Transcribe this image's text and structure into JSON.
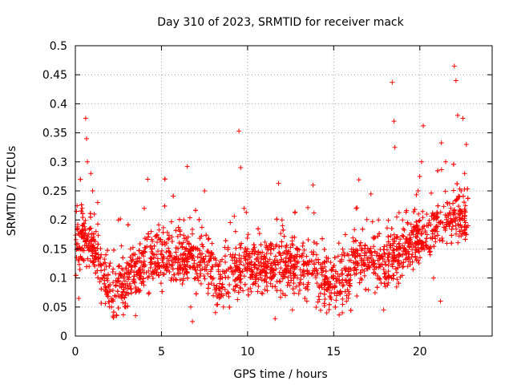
{
  "chart_data": {
    "type": "scatter",
    "title": "Day 310 of 2023, SRMTID for receiver mack",
    "xlabel": "GPS time / hours",
    "ylabel": "SRMTID / TECUs",
    "xlim": [
      0,
      24.2
    ],
    "ylim": [
      0,
      0.5
    ],
    "x_ticks": [
      0,
      5,
      10,
      15,
      20
    ],
    "y_ticks": [
      0,
      0.05,
      0.1,
      0.15,
      0.2,
      0.25,
      0.3,
      0.35,
      0.4,
      0.45,
      0.5
    ],
    "x_tick_labels": [
      "0",
      "5",
      "10",
      "15",
      "20"
    ],
    "y_tick_labels": [
      "0",
      "0.05",
      "0.1",
      "0.15",
      "0.2",
      "0.25",
      "0.3",
      "0.35",
      "0.4",
      "0.45",
      "0.5"
    ],
    "grid": true,
    "marker": "plus",
    "color": "#ff0000",
    "x_range_hours": [
      0,
      22.8
    ],
    "points": [
      [
        0.2,
        0.065
      ],
      [
        0.3,
        0.15
      ],
      [
        0.4,
        0.22
      ],
      [
        0.5,
        0.13
      ],
      [
        0.6,
        0.375
      ],
      [
        0.65,
        0.34
      ],
      [
        0.7,
        0.3
      ],
      [
        0.8,
        0.12
      ],
      [
        0.9,
        0.28
      ],
      [
        1.0,
        0.25
      ],
      [
        1.1,
        0.21
      ],
      [
        1.2,
        0.18
      ],
      [
        1.3,
        0.23
      ],
      [
        1.5,
        0.14
      ],
      [
        1.6,
        0.1
      ],
      [
        1.8,
        0.12
      ],
      [
        2.0,
        0.08
      ],
      [
        2.2,
        0.06
      ],
      [
        2.4,
        0.035
      ],
      [
        2.5,
        0.2
      ],
      [
        2.8,
        0.1
      ],
      [
        3.0,
        0.09
      ],
      [
        3.2,
        0.15
      ],
      [
        3.5,
        0.035
      ],
      [
        3.8,
        0.11
      ],
      [
        4.0,
        0.22
      ],
      [
        4.2,
        0.27
      ],
      [
        4.4,
        0.18
      ],
      [
        4.7,
        0.14
      ],
      [
        5.0,
        0.12
      ],
      [
        5.3,
        0.16
      ],
      [
        5.6,
        0.1
      ],
      [
        6.0,
        0.13
      ],
      [
        6.3,
        0.2
      ],
      [
        6.5,
        0.292
      ],
      [
        6.7,
        0.05
      ],
      [
        6.8,
        0.025
      ],
      [
        7.0,
        0.15
      ],
      [
        7.3,
        0.09
      ],
      [
        7.5,
        0.25
      ],
      [
        7.8,
        0.13
      ],
      [
        8.0,
        0.1
      ],
      [
        8.3,
        0.12
      ],
      [
        8.6,
        0.05
      ],
      [
        9.0,
        0.14
      ],
      [
        9.3,
        0.18
      ],
      [
        9.5,
        0.353
      ],
      [
        9.6,
        0.29
      ],
      [
        9.8,
        0.22
      ],
      [
        10.0,
        0.15
      ],
      [
        10.3,
        0.11
      ],
      [
        10.6,
        0.14
      ],
      [
        11.0,
        0.08
      ],
      [
        11.3,
        0.1
      ],
      [
        11.6,
        0.03
      ],
      [
        11.8,
        0.263
      ],
      [
        12.0,
        0.2
      ],
      [
        12.3,
        0.12
      ],
      [
        12.6,
        0.045
      ],
      [
        12.9,
        0.15
      ],
      [
        13.2,
        0.11
      ],
      [
        13.5,
        0.08
      ],
      [
        13.8,
        0.26
      ],
      [
        14.0,
        0.14
      ],
      [
        14.3,
        0.11
      ],
      [
        14.6,
        0.04
      ],
      [
        14.8,
        0.09
      ],
      [
        15.0,
        0.1
      ],
      [
        15.3,
        0.16
      ],
      [
        15.5,
        0.04
      ],
      [
        15.8,
        0.08
      ],
      [
        16.0,
        0.13
      ],
      [
        16.3,
        0.22
      ],
      [
        16.6,
        0.15
      ],
      [
        17.0,
        0.12
      ],
      [
        17.3,
        0.17
      ],
      [
        17.6,
        0.2
      ],
      [
        17.9,
        0.045
      ],
      [
        18.2,
        0.1
      ],
      [
        18.4,
        0.437
      ],
      [
        18.5,
        0.37
      ],
      [
        18.55,
        0.325
      ],
      [
        18.8,
        0.15
      ],
      [
        19.0,
        0.2
      ],
      [
        19.3,
        0.12
      ],
      [
        19.6,
        0.18
      ],
      [
        19.9,
        0.25
      ],
      [
        20.1,
        0.3
      ],
      [
        20.2,
        0.362
      ],
      [
        20.4,
        0.21
      ],
      [
        20.6,
        0.14
      ],
      [
        20.8,
        0.1
      ],
      [
        21.0,
        0.18
      ],
      [
        21.2,
        0.06
      ],
      [
        21.5,
        0.3
      ],
      [
        21.8,
        0.22
      ],
      [
        22.0,
        0.465
      ],
      [
        22.1,
        0.44
      ],
      [
        22.2,
        0.38
      ],
      [
        22.3,
        0.2
      ],
      [
        22.4,
        0.25
      ],
      [
        22.5,
        0.375
      ],
      [
        22.6,
        0.28
      ],
      [
        22.7,
        0.33
      ],
      [
        22.8,
        0.19
      ]
    ]
  }
}
